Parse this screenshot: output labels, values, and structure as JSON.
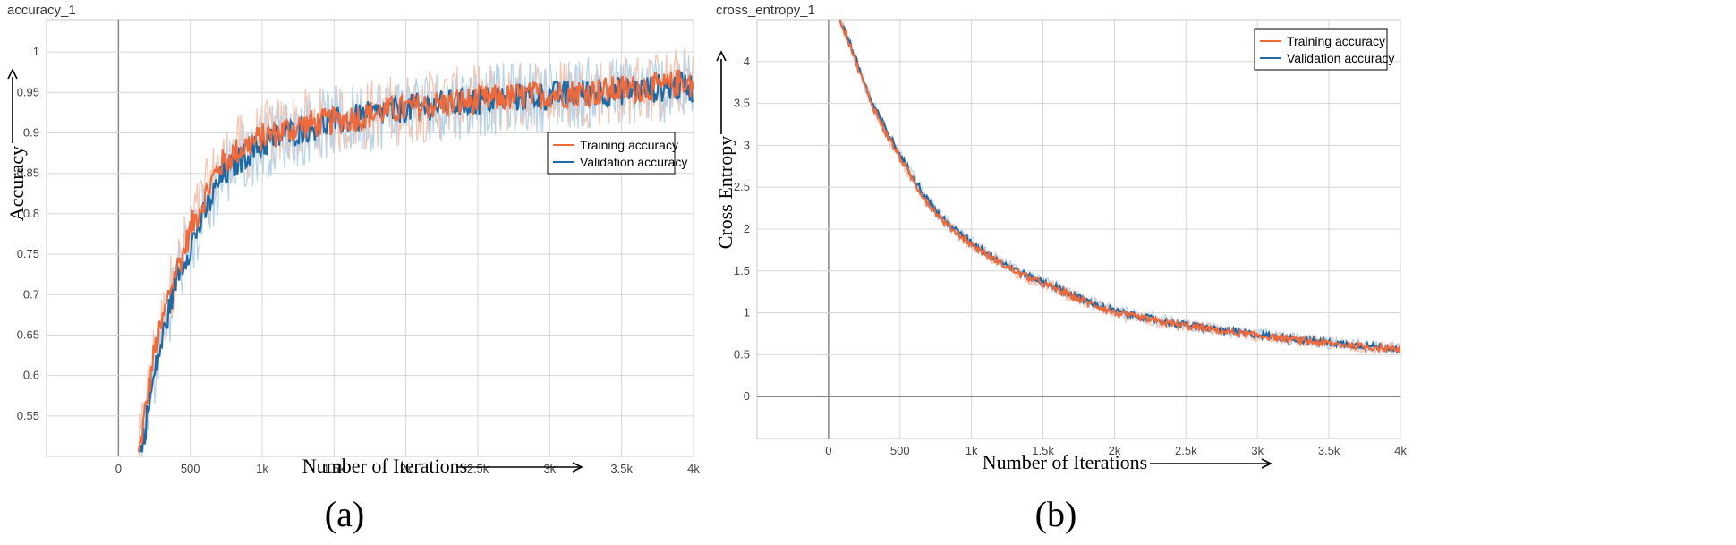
{
  "colors": {
    "training": "#f0693a",
    "validation": "#1f6aa5",
    "training_raw": "#f8c4b0",
    "validation_raw": "#b6d4ea"
  },
  "chart_data": [
    {
      "type": "line",
      "title": "accuracy_1",
      "xlabel": "Number of Iterations",
      "ylabel": "Accuracy",
      "panel_label": "(a)",
      "xlim": [
        -500,
        4000
      ],
      "ylim": [
        0.5,
        1.04
      ],
      "x_ticks": [
        0,
        500,
        1000,
        1500,
        2000,
        2500,
        3000,
        3500,
        4000
      ],
      "x_tick_labels": [
        "0",
        "500",
        "1k",
        "1.5k",
        "2k",
        "2.5k",
        "3k",
        "3.5k",
        "4k"
      ],
      "y_ticks": [
        0.55,
        0.6,
        0.65,
        0.7,
        0.75,
        0.8,
        0.85,
        0.9,
        0.95,
        1
      ],
      "y_tick_labels": [
        "0.55",
        "0.6",
        "0.65",
        "0.7",
        "0.75",
        "0.8",
        "0.85",
        "0.9",
        "0.95",
        "1"
      ],
      "grid": true,
      "legend_position": "center-right",
      "series": [
        {
          "name": "Training accuracy",
          "x": [
            140,
            200,
            250,
            300,
            350,
            400,
            450,
            500,
            550,
            600,
            650,
            700,
            750,
            800,
            900,
            1000,
            1100,
            1200,
            1300,
            1400,
            1500,
            1600,
            1700,
            1800,
            1900,
            2000,
            2200,
            2400,
            2600,
            2800,
            3000,
            3200,
            3400,
            3600,
            3800,
            3950,
            4000
          ],
          "y": [
            0.5,
            0.57,
            0.63,
            0.66,
            0.7,
            0.73,
            0.75,
            0.78,
            0.8,
            0.82,
            0.84,
            0.86,
            0.865,
            0.875,
            0.885,
            0.895,
            0.9,
            0.905,
            0.91,
            0.912,
            0.915,
            0.918,
            0.92,
            0.925,
            0.928,
            0.93,
            0.935,
            0.938,
            0.942,
            0.945,
            0.948,
            0.95,
            0.952,
            0.955,
            0.957,
            0.965,
            0.957
          ]
        },
        {
          "name": "Validation accuracy",
          "x": [
            150,
            200,
            250,
            300,
            350,
            400,
            450,
            500,
            550,
            600,
            650,
            700,
            750,
            800,
            900,
            1000,
            1100,
            1200,
            1300,
            1400,
            1500,
            1600,
            1700,
            1800,
            1900,
            2000,
            2200,
            2400,
            2600,
            2800,
            3000,
            3200,
            3400,
            3600,
            3800,
            3950,
            4000
          ],
          "y": [
            0.5,
            0.55,
            0.6,
            0.64,
            0.68,
            0.72,
            0.74,
            0.76,
            0.78,
            0.8,
            0.82,
            0.84,
            0.85,
            0.86,
            0.875,
            0.885,
            0.895,
            0.9,
            0.905,
            0.91,
            0.913,
            0.916,
            0.92,
            0.923,
            0.926,
            0.93,
            0.934,
            0.937,
            0.941,
            0.944,
            0.946,
            0.949,
            0.951,
            0.953,
            0.956,
            0.958,
            0.955
          ]
        }
      ]
    },
    {
      "type": "line",
      "title": "cross_entropy_1",
      "xlabel": "Number of Iterations",
      "ylabel": "Cross Entropy",
      "panel_label": "(b)",
      "xlim": [
        -500,
        4000
      ],
      "ylim": [
        -0.5,
        4.5
      ],
      "x_ticks": [
        0,
        500,
        1000,
        1500,
        2000,
        2500,
        3000,
        3500,
        4000
      ],
      "x_tick_labels": [
        "0",
        "500",
        "1k",
        "1.5k",
        "2k",
        "2.5k",
        "3k",
        "3.5k",
        "4k"
      ],
      "y_ticks": [
        0,
        0.5,
        1,
        1.5,
        2,
        2.5,
        3,
        3.5,
        4
      ],
      "y_tick_labels": [
        "0",
        "0.5",
        "1",
        "1.5",
        "2",
        "2.5",
        "3",
        "3.5",
        "4"
      ],
      "grid": true,
      "legend_position": "top-right",
      "series": [
        {
          "name": "Training accuracy",
          "x": [
            80,
            150,
            200,
            300,
            400,
            500,
            600,
            700,
            800,
            900,
            1000,
            1100,
            1200,
            1300,
            1400,
            1500,
            1600,
            1700,
            1800,
            1900,
            2000,
            2200,
            2400,
            2600,
            2800,
            3000,
            3200,
            3400,
            3600,
            3800,
            4000
          ],
          "y": [
            4.5,
            4.2,
            3.95,
            3.5,
            3.15,
            2.85,
            2.55,
            2.3,
            2.1,
            1.95,
            1.82,
            1.7,
            1.6,
            1.5,
            1.42,
            1.35,
            1.28,
            1.2,
            1.13,
            1.07,
            1.0,
            0.93,
            0.87,
            0.82,
            0.77,
            0.73,
            0.69,
            0.65,
            0.62,
            0.59,
            0.56
          ]
        },
        {
          "name": "Validation accuracy",
          "x": [
            80,
            150,
            200,
            300,
            400,
            500,
            600,
            700,
            800,
            900,
            1000,
            1100,
            1200,
            1300,
            1400,
            1500,
            1600,
            1700,
            1800,
            1900,
            2000,
            2200,
            2400,
            2600,
            2800,
            3000,
            3200,
            3400,
            3600,
            3800,
            4000
          ],
          "y": [
            4.5,
            4.22,
            3.98,
            3.52,
            3.2,
            2.88,
            2.6,
            2.33,
            2.12,
            1.97,
            1.84,
            1.72,
            1.62,
            1.52,
            1.44,
            1.37,
            1.3,
            1.22,
            1.15,
            1.08,
            1.02,
            0.95,
            0.88,
            0.83,
            0.78,
            0.74,
            0.7,
            0.66,
            0.63,
            0.6,
            0.57
          ]
        }
      ]
    }
  ]
}
